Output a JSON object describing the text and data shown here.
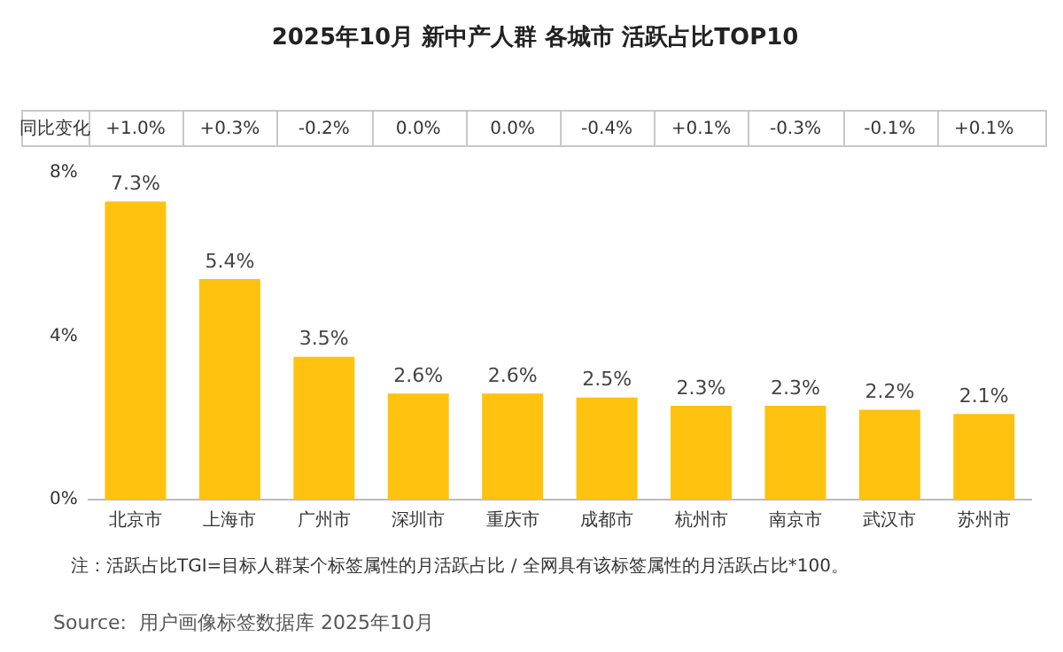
{
  "chart_data": {
    "type": "bar",
    "title": "2025年10月 新中产人群 各城市 活跃占比TOP10",
    "categories": [
      "北京市",
      "上海市",
      "广州市",
      "深圳市",
      "重庆市",
      "成都市",
      "杭州市",
      "南京市",
      "武汉市",
      "苏州市"
    ],
    "values": [
      7.3,
      5.4,
      3.5,
      2.6,
      2.6,
      2.5,
      2.3,
      2.3,
      2.2,
      2.1
    ],
    "value_labels": [
      "7.3%",
      "5.4%",
      "3.5%",
      "2.6%",
      "2.6%",
      "2.5%",
      "2.3%",
      "2.3%",
      "2.2%",
      "2.1%"
    ],
    "color": "#ffc20e",
    "ylim": [
      0,
      8
    ],
    "yticks": [
      {
        "value": 0,
        "label": "0%"
      },
      {
        "value": 4,
        "label": "4%"
      },
      {
        "value": 8,
        "label": "8%"
      }
    ],
    "grid": false,
    "legend": false,
    "annotations": [
      "同比变化",
      "+1.0%",
      "+0.3%",
      "-0.2%",
      "0.0%",
      "0.0%",
      "-0.4%",
      "+0.1%",
      "-0.3%",
      "-0.1%",
      "+0.1%",
      "注：活跃占比TGI=目标人群某个标签属性的月活跃占比 / 全网具有该标签属性的月活跃占比*100。",
      "Source:  用户画像标签数据库 2025年10月"
    ]
  }
}
